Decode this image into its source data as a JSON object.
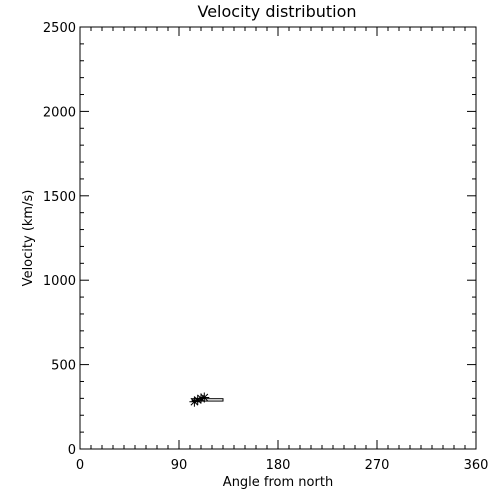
{
  "chart_data": {
    "type": "scatter",
    "title": "Velocity distribution",
    "xlabel": "Angle from north",
    "ylabel": "Velocity (km/s)",
    "xlim": [
      0,
      360
    ],
    "ylim": [
      0,
      2500
    ],
    "x_ticks": [
      0,
      90,
      180,
      270,
      360
    ],
    "y_ticks": [
      0,
      500,
      1000,
      1500,
      2000,
      2500
    ],
    "x_minor_step": 10,
    "y_minor_step": 100,
    "grid": false,
    "legend": "none",
    "points": [
      {
        "x": 104,
        "y": 280
      },
      {
        "x": 107,
        "y": 290
      },
      {
        "x": 110,
        "y": 300
      },
      {
        "x": 113,
        "y": 305
      }
    ],
    "range_box": {
      "x_min": 102,
      "x_max": 130,
      "y_min": 284,
      "y_max": 298
    }
  }
}
